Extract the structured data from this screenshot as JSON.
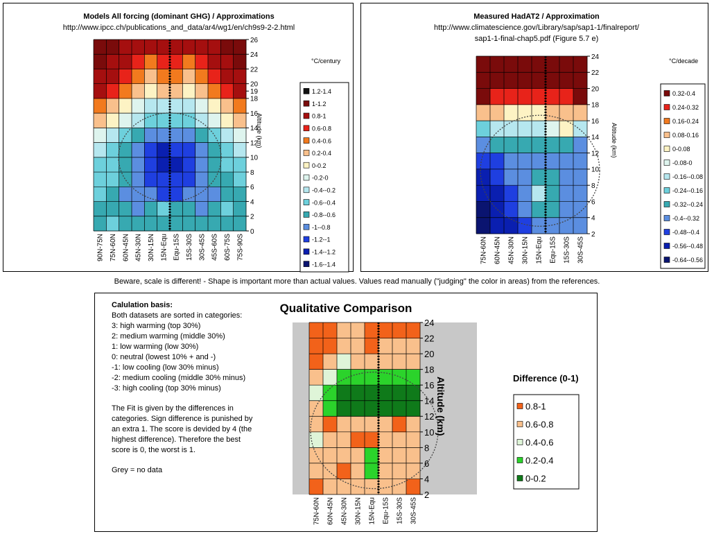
{
  "note": "Beware, scale is different! - Shape is important more than actual values. Values read manually (\"judging\" the color in areas) from the references.",
  "panel1": {
    "title": "Models All forcing (dominant GHG) / Approximations",
    "url": "http://www.ipcc.ch/publications_and_data/ar4/wg1/en/ch9s9-2-2.html",
    "unit": "°C/century",
    "axis_label": "Altitude (km)",
    "yticks": [
      "0",
      "2",
      "4",
      "6",
      "8",
      "10",
      "12",
      "14",
      "16",
      "18",
      "19",
      "20",
      "22",
      "24",
      "26"
    ],
    "xcats": [
      "90N-75N",
      "75N-60N",
      "60N-45N",
      "45N-30N",
      "30N-15N",
      "15N-Equ",
      "Equ-15S",
      "15S-30S",
      "30S-45S",
      "45S-60S",
      "60S-75S",
      "75S-90S"
    ],
    "legend": [
      {
        "label": "1.2-1.4",
        "color": "#111111"
      },
      {
        "label": "1-1.2",
        "color": "#7a0b0b"
      },
      {
        "label": "0.8-1",
        "color": "#a50f0f"
      },
      {
        "label": "0.6-0.8",
        "color": "#e8231a"
      },
      {
        "label": "0.4-0.6",
        "color": "#f27a1e"
      },
      {
        "label": "0.2-0.4",
        "color": "#f9c08c"
      },
      {
        "label": "0-0.2",
        "color": "#fdf3c4"
      },
      {
        "label": "-0.2-0",
        "color": "#def4ee"
      },
      {
        "label": "-0.4--0.2",
        "color": "#b6e7ef"
      },
      {
        "label": "-0.6--0.4",
        "color": "#6dd0dc"
      },
      {
        "label": "-0.8--0.6",
        "color": "#37a9b1"
      },
      {
        "label": "-1--0.8",
        "color": "#5b8ee0"
      },
      {
        "label": "-1.2--1",
        "color": "#1f3fe0"
      },
      {
        "label": "-1.4--1.2",
        "color": "#0a1fb0"
      },
      {
        "label": "-1.6--1.4",
        "color": "#0a1470"
      }
    ]
  },
  "panel2": {
    "title": "Measured HadAT2 / Approximation",
    "url_line1": "http://www.climatescience.gov/Library/sap/sap1-1/finalreport/",
    "url_line2": "sap1-1-final-chap5.pdf  (Figure 5.7 e)",
    "unit": "°C/decade",
    "axis_label": "Altitude (km)",
    "yticks": [
      "2",
      "4",
      "6",
      "8",
      "10",
      "12",
      "14",
      "16",
      "18",
      "20",
      "22",
      "24"
    ],
    "xcats": [
      "75N-60N",
      "60N-45N",
      "45N-30N",
      "30N-15N",
      "15N-Equ",
      "Equ-15S",
      "15S-30S",
      "30S-45S"
    ],
    "legend": [
      {
        "label": "0.32-0.4",
        "color": "#7a0b0b"
      },
      {
        "label": "0.24-0.32",
        "color": "#e8231a"
      },
      {
        "label": "0.16-0.24",
        "color": "#f27a1e"
      },
      {
        "label": "0.08-0.16",
        "color": "#f9c08c"
      },
      {
        "label": "0-0.08",
        "color": "#fdf3c4"
      },
      {
        "label": "-0.08-0",
        "color": "#def4ee"
      },
      {
        "label": "-0.16--0.08",
        "color": "#b6e7ef"
      },
      {
        "label": "-0.24--0.16",
        "color": "#6dd0dc"
      },
      {
        "label": "-0.32--0.24",
        "color": "#37a9b1"
      },
      {
        "label": "-0.4--0.32",
        "color": "#5b8ee0"
      },
      {
        "label": "-0.48--0.4",
        "color": "#1f3fe0"
      },
      {
        "label": "-0.56--0.48",
        "color": "#0a1fb0"
      },
      {
        "label": "-0.64--0.56",
        "color": "#0a1470"
      }
    ]
  },
  "panel3": {
    "title": "Qualitative Comparison",
    "axis_label": "Altitude (km)",
    "legend_title": "Difference (0-1)",
    "yticks": [
      "2",
      "4",
      "6",
      "8",
      "10",
      "12",
      "14",
      "16",
      "18",
      "20",
      "22",
      "24"
    ],
    "xcats": [
      "75N-60N",
      "60N-45N",
      "45N-30N",
      "30N-15N",
      "15N-Equ",
      "Equ-15S",
      "15S-30S",
      "30S-45S"
    ],
    "legend": [
      {
        "label": "0.8-1",
        "color": "#f2621a"
      },
      {
        "label": "0.6-0.8",
        "color": "#f9c08c"
      },
      {
        "label": "0.4-0.6",
        "color": "#dff5d8"
      },
      {
        "label": "0.2-0.4",
        "color": "#2bd32b"
      },
      {
        "label": "0-0.2",
        "color": "#0f7a1a"
      }
    ],
    "no_data_color": "#c8c8c8",
    "calc_lines": [
      "Calulation basis:",
      "Both datasets are sorted in categories:",
      "3: high warming (top 30%)",
      "2: medium warming (middle 30%)",
      "1: low warming (low 30%)",
      "0: neutral (lowest 10% + and -)",
      "-1: low cooling (low 30% minus)",
      "-2: medium cooling (middle 30% minus)",
      "-3: high cooling (top 30% minus)",
      "",
      "The Fit is given by the differences in categories. Sign difference is punished by an extra 1. The score is devided by 4 (the highest difference). Therefore the best score is 0, the worst is 1.",
      "",
      "Grey = no data"
    ]
  },
  "chart_data": [
    {
      "type": "heatmap",
      "title": "Models All forcing (dominant GHG) / Approximations",
      "ylabel": "Altitude (km)",
      "ylim": [
        0,
        26
      ],
      "categories": [
        "90N-75N",
        "75N-60N",
        "60N-45N",
        "45N-30N",
        "30N-15N",
        "15N-Equ",
        "Equ-15S",
        "15S-30S",
        "30S-45S",
        "45S-60S",
        "60S-75S",
        "75S-90S"
      ],
      "rows_altitude_km": [
        0,
        2,
        4,
        6,
        8,
        10,
        12,
        14,
        16,
        18,
        20,
        22,
        24
      ],
      "levels": [
        [
          4,
          5,
          4,
          4,
          4,
          4,
          4,
          4,
          4,
          4,
          4,
          4
        ],
        [
          4,
          4,
          4,
          3,
          4,
          5,
          4,
          4,
          3,
          4,
          5,
          4
        ],
        [
          5,
          4,
          3,
          3,
          3,
          2,
          2,
          3,
          3,
          3,
          4,
          4
        ],
        [
          5,
          5,
          4,
          3,
          2,
          2,
          2,
          2,
          3,
          4,
          4,
          5
        ],
        [
          5,
          5,
          4,
          3,
          2,
          1,
          1,
          2,
          3,
          4,
          5,
          5
        ],
        [
          6,
          5,
          4,
          3,
          2,
          1,
          2,
          2,
          3,
          4,
          5,
          6
        ],
        [
          7,
          6,
          5,
          4,
          3,
          3,
          3,
          3,
          4,
          5,
          6,
          7
        ],
        [
          9,
          8,
          7,
          6,
          5,
          5,
          5,
          5,
          6,
          7,
          8,
          9
        ],
        [
          10,
          9,
          8,
          7,
          6,
          6,
          6,
          6,
          7,
          8,
          9,
          10
        ],
        [
          12,
          11,
          10,
          9,
          8,
          9,
          9,
          8,
          9,
          10,
          11,
          12
        ],
        [
          12,
          12,
          11,
          10,
          9,
          10,
          10,
          9,
          10,
          11,
          12,
          12
        ],
        [
          13,
          12,
          12,
          11,
          10,
          11,
          11,
          10,
          11,
          12,
          12,
          13
        ],
        [
          13,
          13,
          12,
          12,
          12,
          12,
          12,
          12,
          12,
          12,
          13,
          13
        ]
      ]
    },
    {
      "type": "heatmap",
      "title": "Measured HadAT2 / Approximation",
      "ylabel": "Altitude (km)",
      "ylim": [
        2,
        24
      ],
      "categories": [
        "75N-60N",
        "60N-45N",
        "45N-30N",
        "30N-15N",
        "15N-Equ",
        "Equ-15S",
        "15S-30S",
        "30S-45S"
      ],
      "rows_altitude_km": [
        2,
        4,
        6,
        8,
        10,
        12,
        14,
        16,
        18,
        20,
        22
      ],
      "levels": [
        [
          0,
          1,
          1,
          2,
          3,
          3,
          3,
          3
        ],
        [
          0,
          1,
          2,
          3,
          4,
          4,
          3,
          3
        ],
        [
          1,
          1,
          2,
          3,
          6,
          4,
          3,
          3
        ],
        [
          1,
          2,
          3,
          3,
          4,
          4,
          3,
          3
        ],
        [
          2,
          2,
          3,
          3,
          3,
          3,
          3,
          3
        ],
        [
          3,
          4,
          4,
          4,
          4,
          4,
          4,
          3
        ],
        [
          5,
          6,
          6,
          6,
          6,
          7,
          8,
          6
        ],
        [
          9,
          9,
          8,
          8,
          8,
          9,
          9,
          9
        ],
        [
          12,
          11,
          11,
          11,
          11,
          11,
          11,
          12
        ],
        [
          12,
          12,
          12,
          12,
          12,
          12,
          12,
          12
        ],
        [
          12,
          12,
          12,
          12,
          12,
          12,
          12,
          12
        ]
      ]
    },
    {
      "type": "heatmap",
      "title": "Qualitative Comparison",
      "ylabel": "Altitude (km)",
      "ylim": [
        2,
        24
      ],
      "categories": [
        "75N-60N",
        "60N-45N",
        "45N-30N",
        "30N-15N",
        "15N-Equ",
        "Equ-15S",
        "15S-30S",
        "30S-45S"
      ],
      "rows_altitude_km": [
        2,
        4,
        6,
        8,
        10,
        12,
        14,
        16,
        18,
        20,
        22
      ],
      "levels": [
        [
          4,
          3,
          3,
          3,
          3,
          3,
          3,
          4
        ],
        [
          3,
          3,
          4,
          3,
          1,
          3,
          3,
          3
        ],
        [
          3,
          3,
          3,
          3,
          1,
          3,
          3,
          3
        ],
        [
          2,
          3,
          3,
          4,
          4,
          3,
          3,
          3
        ],
        [
          3,
          4,
          3,
          3,
          3,
          3,
          4,
          3
        ],
        [
          3,
          1,
          0,
          0,
          0,
          0,
          0,
          0
        ],
        [
          2,
          1,
          0,
          0,
          0,
          0,
          0,
          0
        ],
        [
          3,
          2,
          1,
          1,
          1,
          1,
          1,
          1
        ],
        [
          4,
          3,
          2,
          3,
          3,
          3,
          3,
          3
        ],
        [
          4,
          4,
          3,
          3,
          4,
          3,
          3,
          3
        ],
        [
          4,
          4,
          3,
          3,
          4,
          4,
          4,
          4
        ]
      ]
    }
  ]
}
